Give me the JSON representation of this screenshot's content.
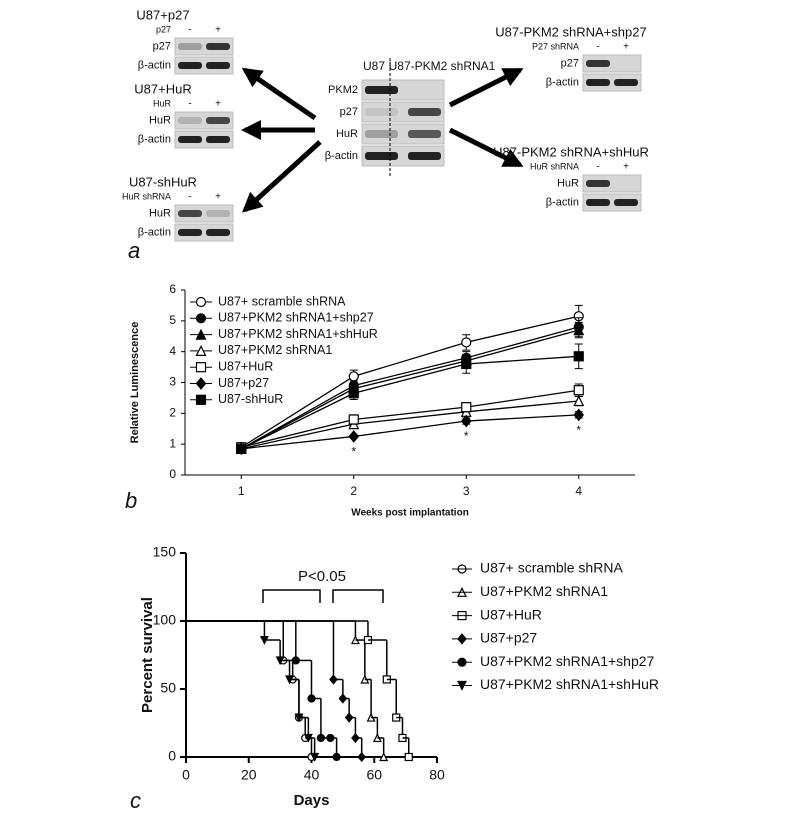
{
  "panel_a": {
    "label": "a",
    "center": {
      "headers": [
        "U87",
        "U87-PKM2 shRNA1"
      ],
      "rows": [
        "PKM2",
        "p27",
        "HuR",
        "β-actin"
      ]
    },
    "blots": [
      {
        "title": "U87+p27",
        "treatment": "p27",
        "lanes": [
          "-",
          "+"
        ],
        "rows": [
          "p27",
          "β-actin"
        ]
      },
      {
        "title": "U87+HuR",
        "treatment": "HuR",
        "lanes": [
          "-",
          "+"
        ],
        "rows": [
          "HuR",
          "β-actin"
        ]
      },
      {
        "title": "U87-shHuR",
        "treatment": "HuR shRNA",
        "lanes": [
          "-",
          "+"
        ],
        "rows": [
          "HuR",
          "β-actin"
        ]
      },
      {
        "title": "U87-PKM2 shRNA+shp27",
        "treatment": "P27 shRNA",
        "lanes": [
          "-",
          "+"
        ],
        "rows": [
          "p27",
          "β-actin"
        ]
      },
      {
        "title": "U87-PKM2 shRNA+shHuR",
        "treatment": "HuR shRNA",
        "lanes": [
          "-",
          "+"
        ],
        "rows": [
          "HuR",
          "β-actin"
        ]
      }
    ]
  },
  "chart_data": [
    {
      "type": "line",
      "panel_label": "b",
      "x_label": "Weeks post implantation",
      "y_label": "Relative Luminescence",
      "categories": [
        "1",
        "2",
        "3",
        "4"
      ],
      "ylim": [
        0,
        6
      ],
      "yticks": [
        0,
        1,
        2,
        3,
        4,
        5,
        6
      ],
      "significance_marks": [
        null,
        "*",
        "*",
        "*"
      ],
      "series": [
        {
          "name": "U87+ scramble shRNA",
          "color": "#000000",
          "marker": "open-circle",
          "values": [
            0.9,
            3.2,
            4.3,
            5.15
          ],
          "errors": [
            0.1,
            0.2,
            0.25,
            0.35
          ]
        },
        {
          "name": "U87+PKM2 shRNA1+shp27",
          "color": "#000000",
          "marker": "filled-circle",
          "values": [
            0.85,
            2.9,
            3.8,
            4.8
          ],
          "errors": [
            0.1,
            0.15,
            0.2,
            0.3
          ]
        },
        {
          "name": "U87+PKM2 shRNA1+shHuR",
          "color": "#000000",
          "marker": "filled-triangle",
          "values": [
            0.85,
            2.8,
            3.7,
            4.7
          ],
          "errors": [
            0.1,
            0.15,
            0.2,
            0.25
          ]
        },
        {
          "name": "U87+PKM2 shRNA1",
          "color": "#000000",
          "marker": "open-triangle",
          "values": [
            0.85,
            1.65,
            2.05,
            2.4
          ],
          "errors": [
            0.1,
            0.1,
            0.1,
            0.15
          ]
        },
        {
          "name": "U87+HuR",
          "color": "#000000",
          "marker": "open-square",
          "values": [
            0.9,
            1.8,
            2.2,
            2.75
          ],
          "errors": [
            0.1,
            0.15,
            0.15,
            0.2
          ]
        },
        {
          "name": "U87+p27",
          "color": "#000000",
          "marker": "filled-diamond",
          "values": [
            0.85,
            1.25,
            1.75,
            1.95
          ],
          "errors": [
            0.05,
            0.05,
            0.1,
            0.1
          ]
        },
        {
          "name": "U87-shHuR",
          "color": "#000000",
          "marker": "filled-square",
          "values": [
            0.85,
            2.65,
            3.6,
            3.85
          ],
          "errors": [
            0.1,
            0.2,
            0.3,
            0.4
          ]
        }
      ]
    },
    {
      "type": "step",
      "panel_label": "c",
      "x_label": "Days",
      "y_label": "Percent survival",
      "xlim": [
        0,
        80
      ],
      "xticks": [
        0,
        20,
        40,
        60,
        80
      ],
      "ylim": [
        0,
        150
      ],
      "yticks": [
        0,
        50,
        100,
        150
      ],
      "annotation": "P<0.05",
      "series": [
        {
          "name": "U87+ scramble shRNA",
          "color": "#000000",
          "marker": "open-circle",
          "x": [
            0,
            31,
            34,
            36,
            38,
            40
          ],
          "values": [
            100,
            71,
            57,
            29,
            14,
            0
          ]
        },
        {
          "name": "U87+PKM2 shRNA1",
          "color": "#000000",
          "marker": "open-triangle",
          "x": [
            0,
            54,
            57,
            59,
            61,
            63
          ],
          "values": [
            100,
            86,
            57,
            29,
            14,
            0
          ]
        },
        {
          "name": "U87+HuR",
          "color": "#000000",
          "marker": "open-square",
          "x": [
            0,
            58,
            64,
            67,
            69,
            71
          ],
          "values": [
            100,
            86,
            57,
            29,
            14,
            0
          ]
        },
        {
          "name": "U87+p27",
          "color": "#000000",
          "marker": "filled-diamond",
          "x": [
            0,
            47,
            50,
            52,
            54,
            56
          ],
          "values": [
            100,
            57,
            43,
            29,
            14,
            0
          ]
        },
        {
          "name": "U87+PKM2 shRNA1+shp27",
          "color": "#000000",
          "marker": "filled-circle",
          "x": [
            0,
            35,
            40,
            43,
            46,
            48
          ],
          "values": [
            100,
            71,
            43,
            14,
            14,
            0
          ]
        },
        {
          "name": "U87+PKM2 shRNA1+shHuR",
          "color": "#000000",
          "marker": "filled-triangle-down",
          "x": [
            0,
            25,
            30,
            33,
            36,
            39,
            41
          ],
          "values": [
            100,
            86,
            71,
            57,
            29,
            14,
            0
          ]
        }
      ]
    }
  ]
}
